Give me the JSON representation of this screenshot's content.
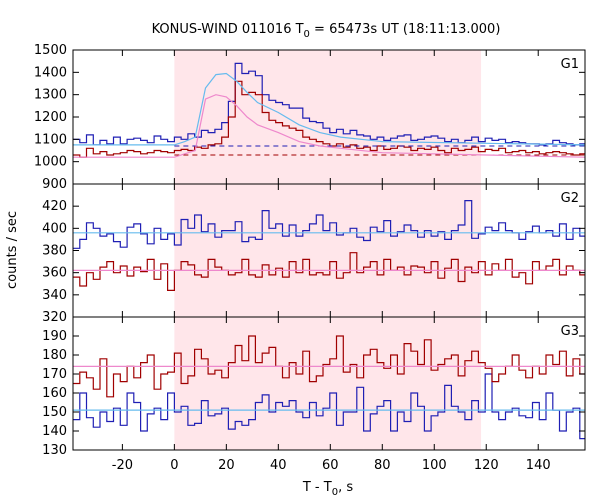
{
  "chart_data": {
    "type": "line",
    "title_main": "KONUS-WIND 011016 T",
    "title_sub": "0",
    "title_rest": " = 65473s UT (18:11:13.000)",
    "xlabel_main": "T - T",
    "xlabel_sub": "0",
    "xlabel_rest": ", s",
    "ylabel": "counts / sec",
    "xlim": [
      -39,
      158
    ],
    "x_ticks": [
      -20,
      0,
      20,
      40,
      60,
      80,
      100,
      120,
      140
    ],
    "highlight_interval": [
      0,
      118
    ],
    "bin_start": -39,
    "bin_width": 2.6,
    "colors": {
      "blue": "#1f1fb4",
      "red": "#a00000",
      "light_blue": "#66bbee",
      "pink": "#ee88cc",
      "highlight": "#ffe6ea"
    },
    "panels": [
      {
        "label": "G1",
        "ylim": [
          900,
          1500
        ],
        "y_ticks": [
          900,
          1000,
          1100,
          1200,
          1300,
          1400,
          1500
        ],
        "series": [
          {
            "color": "blue",
            "values": [
              1100,
              1085,
              1120,
              1075,
              1095,
              1080,
              1110,
              1080,
              1100,
              1105,
              1095,
              1085,
              1115,
              1100,
              1090,
              1110,
              1100,
              1125,
              1110,
              1140,
              1130,
              1145,
              1175,
              1270,
              1440,
              1395,
              1405,
              1385,
              1300,
              1275,
              1265,
              1255,
              1240,
              1240,
              1195,
              1180,
              1175,
              1150,
              1130,
              1145,
              1125,
              1140,
              1120,
              1115,
              1100,
              1110,
              1095,
              1105,
              1115,
              1120,
              1095,
              1100,
              1110,
              1115,
              1105,
              1090,
              1100,
              1085,
              1095,
              1110,
              1090,
              1105,
              1095,
              1100,
              1085,
              1090,
              1085,
              1080,
              1080,
              1075,
              1080,
              1095,
              1085,
              1080,
              1075,
              1080
            ]
          },
          {
            "color": "red",
            "values": [
              1030,
              1020,
              1060,
              1035,
              1045,
              1030,
              1035,
              1040,
              1050,
              1045,
              1035,
              1040,
              1050,
              1045,
              1040,
              1050,
              1055,
              1050,
              1065,
              1060,
              1075,
              1080,
              1110,
              1200,
              1360,
              1300,
              1310,
              1300,
              1220,
              1185,
              1175,
              1160,
              1150,
              1140,
              1110,
              1100,
              1090,
              1080,
              1070,
              1080,
              1065,
              1075,
              1060,
              1065,
              1050,
              1070,
              1055,
              1060,
              1070,
              1065,
              1050,
              1060,
              1055,
              1065,
              1050,
              1040,
              1060,
              1050,
              1055,
              1065,
              1045,
              1055,
              1050,
              1060,
              1040,
              1045,
              1050,
              1040,
              1045,
              1035,
              1040,
              1045,
              1040,
              1035,
              1030,
              1035
            ]
          }
        ],
        "fit_lines": [
          {
            "color": "light_blue",
            "x": [
              -39,
              0,
              4,
              8,
              12,
              16,
              20,
              24,
              28,
              32,
              40,
              48,
              56,
              64,
              80,
              158
            ],
            "y": [
              1075,
              1075,
              1090,
              1110,
              1330,
              1390,
              1395,
              1360,
              1310,
              1265,
              1220,
              1165,
              1130,
              1110,
              1090,
              1075
            ]
          },
          {
            "color": "pink",
            "x": [
              -39,
              0,
              4,
              8,
              12,
              16,
              20,
              24,
              28,
              32,
              40,
              48,
              56,
              64,
              80,
              158
            ],
            "y": [
              1020,
              1020,
              1035,
              1050,
              1280,
              1300,
              1290,
              1250,
              1200,
              1165,
              1130,
              1090,
              1070,
              1060,
              1040,
              1020
            ]
          }
        ],
        "dashed_lines": [
          {
            "color": "blue",
            "x": [
              0,
              158
            ],
            "y": [
              1070,
              1070
            ]
          },
          {
            "color": "red",
            "x": [
              0,
              158
            ],
            "y": [
              1030,
              1030
            ]
          }
        ]
      },
      {
        "label": "G2",
        "ylim": [
          320,
          440
        ],
        "y_ticks": [
          320,
          340,
          360,
          380,
          400,
          420
        ],
        "series": [
          {
            "color": "blue",
            "values": [
              382,
              390,
              405,
              400,
              393,
              395,
              388,
              383,
              401,
              404,
              395,
              386,
              400,
              390,
              395,
              385,
              408,
              400,
              412,
              397,
              404,
              392,
              398,
              398,
              406,
              388,
              392,
              390,
              416,
              400,
              404,
              393,
              403,
              393,
              398,
              404,
              412,
              398,
              405,
              394,
              396,
              400,
              392,
              389,
              401,
              397,
              407,
              393,
              397,
              403,
              398,
              392,
              398,
              393,
              397,
              390,
              398,
              403,
              425,
              391,
              395,
              401,
              398,
              405,
              398,
              396,
              390,
              397,
              402,
              396,
              398,
              393,
              404,
              390,
              400,
              393
            ]
          },
          {
            "color": "red",
            "values": [
              356,
              348,
              360,
              354,
              365,
              370,
              360,
              366,
              357,
              365,
              361,
              372,
              354,
              368,
              344,
              362,
              370,
              367,
              358,
              356,
              372,
              365,
              362,
              358,
              360,
              372,
              358,
              356,
              367,
              358,
              364,
              356,
              370,
              360,
              372,
              358,
              360,
              358,
              370,
              355,
              360,
              378,
              360,
              365,
              370,
              358,
              372,
              362,
              365,
              358,
              366,
              365,
              360,
              370,
              355,
              364,
              372,
              352,
              365,
              360,
              370,
              358,
              368,
              362,
              372,
              356,
              360,
              350,
              370,
              362,
              366,
              372,
              358,
              366,
              362,
              358
            ]
          }
        ],
        "fit_lines": [
          {
            "color": "light_blue",
            "x": [
              -39,
              158
            ],
            "y": [
              396,
              396
            ]
          },
          {
            "color": "pink",
            "x": [
              -39,
              158
            ],
            "y": [
              362,
              362
            ]
          }
        ],
        "dashed_lines": []
      },
      {
        "label": "G3",
        "ylim": [
          130,
          200
        ],
        "y_ticks": [
          130,
          140,
          150,
          160,
          170,
          180,
          190
        ],
        "series": [
          {
            "color": "blue",
            "values": [
              146,
              160,
              147,
              142,
              150,
              145,
              152,
              143,
              160,
              155,
              140,
              149,
              152,
              146,
              160,
              150,
              153,
              143,
              144,
              156,
              148,
              149,
              152,
              141,
              145,
              143,
              146,
              155,
              159,
              150,
              155,
              153,
              156,
              150,
              147,
              155,
              148,
              152,
              160,
              143,
              150,
              150,
              163,
              140,
              149,
              153,
              156,
              140,
              150,
              145,
              160,
              153,
              140,
              148,
              150,
              164,
              153,
              150,
              146,
              156,
              150,
              170,
              150,
              146,
              150,
              152,
              148,
              147,
              155,
              146,
              160,
              151,
              140,
              150,
              152,
              136
            ]
          },
          {
            "color": "red",
            "values": [
              165,
              171,
              168,
              162,
              178,
              158,
              170,
              166,
              174,
              168,
              176,
              180,
              162,
              170,
              171,
              181,
              165,
              169,
              183,
              178,
              170,
              172,
              168,
              176,
              185,
              177,
              190,
              176,
              181,
              184,
              174,
              168,
              176,
              170,
              182,
              166,
              169,
              175,
              178,
              190,
              171,
              175,
              168,
              180,
              183,
              176,
              173,
              180,
              170,
              186,
              182,
              175,
              188,
              172,
              175,
              178,
              180,
              169,
              177,
              182,
              176,
              173,
              166,
              170,
              174,
              180,
              172,
              168,
              174,
              170,
              180,
              175,
              182,
              169,
              178,
              170
            ]
          }
        ],
        "fit_lines": [
          {
            "color": "light_blue",
            "x": [
              -39,
              158
            ],
            "y": [
              151,
              151
            ]
          },
          {
            "color": "pink",
            "x": [
              -39,
              158
            ],
            "y": [
              174,
              174
            ]
          }
        ],
        "dashed_lines": []
      }
    ]
  }
}
